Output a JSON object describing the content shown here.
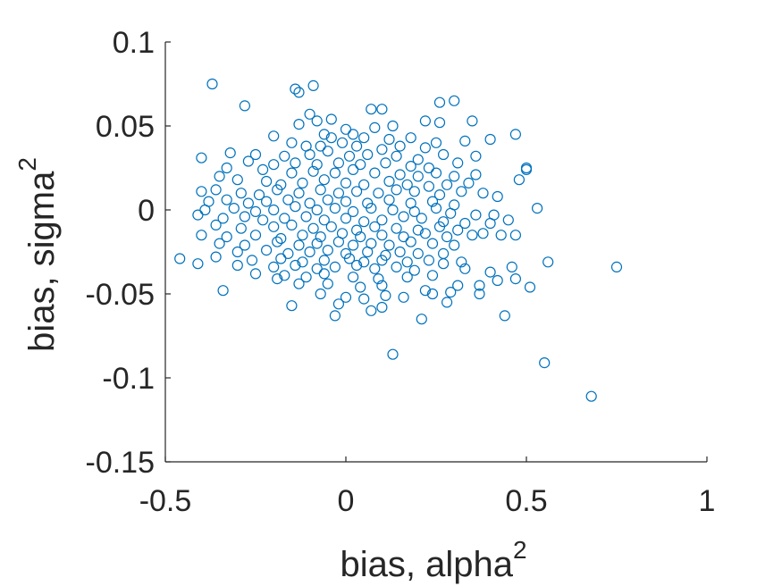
{
  "chart_data": {
    "type": "scatter",
    "xlabel": "bias, alpha",
    "xlabel_sup": "2",
    "ylabel": "bias, sigma",
    "ylabel_sup": "2",
    "xlim": [
      -0.5,
      1
    ],
    "ylim": [
      -0.15,
      0.1
    ],
    "xticks": [
      -0.5,
      0,
      0.5,
      1
    ],
    "xtick_labels": [
      "-0.5",
      "0",
      "0.5",
      "1"
    ],
    "yticks": [
      -0.15,
      -0.1,
      -0.05,
      0,
      0.05,
      0.1
    ],
    "ytick_labels": [
      "-0.15",
      "-0.1",
      "-0.05",
      "0",
      "0.05",
      "0.1"
    ],
    "marker": "open-circle",
    "color": "#0072BD",
    "grid": false,
    "series": [
      {
        "points": [
          [
            -0.37,
            0.075
          ],
          [
            -0.14,
            0.072
          ],
          [
            -0.13,
            0.07
          ],
          [
            -0.09,
            0.074
          ],
          [
            -0.28,
            0.062
          ],
          [
            0.07,
            0.06
          ],
          [
            0.1,
            0.06
          ],
          [
            0.26,
            0.064
          ],
          [
            0.3,
            0.065
          ],
          [
            -0.1,
            0.057
          ],
          [
            -0.08,
            0.053
          ],
          [
            -0.04,
            0.054
          ],
          [
            -0.13,
            0.051
          ],
          [
            0.08,
            0.049
          ],
          [
            0.13,
            0.05
          ],
          [
            0.22,
            0.053
          ],
          [
            0.26,
            0.052
          ],
          [
            0.35,
            0.053
          ],
          [
            0.0,
            0.048
          ],
          [
            0.02,
            0.045
          ],
          [
            -0.06,
            0.045
          ],
          [
            -0.04,
            0.043
          ],
          [
            0.05,
            0.043
          ],
          [
            -0.2,
            0.044
          ],
          [
            0.12,
            0.042
          ],
          [
            0.18,
            0.043
          ],
          [
            0.25,
            0.04
          ],
          [
            0.33,
            0.041
          ],
          [
            0.4,
            0.042
          ],
          [
            0.47,
            0.045
          ],
          [
            -0.15,
            0.04
          ],
          [
            -0.11,
            0.038
          ],
          [
            -0.07,
            0.038
          ],
          [
            -0.01,
            0.04
          ],
          [
            0.03,
            0.038
          ],
          [
            0.1,
            0.036
          ],
          [
            0.15,
            0.038
          ],
          [
            0.22,
            0.037
          ],
          [
            -0.32,
            0.034
          ],
          [
            -0.25,
            0.033
          ],
          [
            -0.17,
            0.032
          ],
          [
            -0.1,
            0.033
          ],
          [
            -0.05,
            0.035
          ],
          [
            0.01,
            0.032
          ],
          [
            0.06,
            0.033
          ],
          [
            0.14,
            0.032
          ],
          [
            0.2,
            0.03
          ],
          [
            0.27,
            0.033
          ],
          [
            0.36,
            0.032
          ],
          [
            0.31,
            0.028
          ],
          [
            0.23,
            0.025
          ],
          [
            0.18,
            0.026
          ],
          [
            0.11,
            0.028
          ],
          [
            0.04,
            0.027
          ],
          [
            -0.02,
            0.028
          ],
          [
            -0.08,
            0.027
          ],
          [
            -0.14,
            0.028
          ],
          [
            -0.2,
            0.027
          ],
          [
            -0.27,
            0.029
          ],
          [
            -0.4,
            0.031
          ],
          [
            -0.33,
            0.025
          ],
          [
            -0.23,
            0.024
          ],
          [
            -0.15,
            0.022
          ],
          [
            -0.09,
            0.023
          ],
          [
            -0.03,
            0.022
          ],
          [
            0.02,
            0.024
          ],
          [
            0.08,
            0.022
          ],
          [
            0.15,
            0.021
          ],
          [
            0.2,
            0.02
          ],
          [
            0.25,
            0.022
          ],
          [
            0.3,
            0.02
          ],
          [
            0.36,
            0.021
          ],
          [
            0.5,
            0.025
          ],
          [
            0.5,
            0.024
          ],
          [
            0.48,
            0.018
          ],
          [
            -0.35,
            0.02
          ],
          [
            -0.3,
            0.018
          ],
          [
            -0.22,
            0.017
          ],
          [
            -0.18,
            0.015
          ],
          [
            -0.12,
            0.016
          ],
          [
            -0.06,
            0.018
          ],
          [
            0.0,
            0.016
          ],
          [
            0.05,
            0.015
          ],
          [
            0.12,
            0.017
          ],
          [
            0.17,
            0.015
          ],
          [
            0.23,
            0.014
          ],
          [
            0.28,
            0.015
          ],
          [
            0.34,
            0.016
          ],
          [
            -0.4,
            0.011
          ],
          [
            -0.36,
            0.012
          ],
          [
            -0.29,
            0.01
          ],
          [
            -0.24,
            0.009
          ],
          [
            -0.19,
            0.012
          ],
          [
            -0.13,
            0.01
          ],
          [
            -0.07,
            0.012
          ],
          [
            -0.02,
            0.01
          ],
          [
            0.03,
            0.011
          ],
          [
            0.09,
            0.01
          ],
          [
            0.14,
            0.012
          ],
          [
            0.19,
            0.011
          ],
          [
            0.26,
            0.009
          ],
          [
            0.32,
            0.011
          ],
          [
            0.38,
            0.01
          ],
          [
            0.42,
            0.008
          ],
          [
            -0.38,
            0.005
          ],
          [
            -0.33,
            0.006
          ],
          [
            -0.27,
            0.004
          ],
          [
            -0.22,
            0.005
          ],
          [
            -0.16,
            0.006
          ],
          [
            -0.1,
            0.004
          ],
          [
            -0.05,
            0.006
          ],
          [
            0.0,
            0.005
          ],
          [
            0.06,
            0.004
          ],
          [
            0.12,
            0.006
          ],
          [
            0.18,
            0.004
          ],
          [
            0.24,
            0.005
          ],
          [
            0.3,
            0.003
          ],
          [
            -0.39,
            0.0
          ],
          [
            -0.31,
            0.001
          ],
          [
            -0.25,
            -0.001
          ],
          [
            -0.2,
            0.0
          ],
          [
            -0.14,
            0.002
          ],
          [
            -0.08,
            0.0
          ],
          [
            -0.03,
            0.001
          ],
          [
            0.02,
            -0.001
          ],
          [
            0.07,
            0.001
          ],
          [
            0.13,
            0.0
          ],
          [
            0.19,
            -0.001
          ],
          [
            0.25,
            0.001
          ],
          [
            0.29,
            -0.002
          ],
          [
            0.36,
            -0.003
          ],
          [
            0.41,
            -0.003
          ],
          [
            0.53,
            0.001
          ],
          [
            -0.41,
            -0.003
          ],
          [
            -0.34,
            -0.005
          ],
          [
            -0.28,
            -0.004
          ],
          [
            -0.23,
            -0.006
          ],
          [
            -0.17,
            -0.005
          ],
          [
            -0.11,
            -0.004
          ],
          [
            -0.06,
            -0.006
          ],
          [
            0.0,
            -0.005
          ],
          [
            0.05,
            -0.007
          ],
          [
            0.1,
            -0.006
          ],
          [
            0.16,
            -0.004
          ],
          [
            0.21,
            -0.005
          ],
          [
            0.27,
            -0.007
          ],
          [
            0.33,
            -0.008
          ],
          [
            0.4,
            -0.008
          ],
          [
            0.45,
            -0.006
          ],
          [
            -0.36,
            -0.009
          ],
          [
            -0.29,
            -0.011
          ],
          [
            -0.2,
            -0.01
          ],
          [
            -0.15,
            -0.009
          ],
          [
            -0.09,
            -0.011
          ],
          [
            -0.04,
            -0.01
          ],
          [
            0.03,
            -0.012
          ],
          [
            0.08,
            -0.01
          ],
          [
            0.14,
            -0.011
          ],
          [
            0.2,
            -0.012
          ],
          [
            0.26,
            -0.01
          ],
          [
            0.31,
            -0.012
          ],
          [
            -0.4,
            -0.015
          ],
          [
            -0.33,
            -0.016
          ],
          [
            -0.25,
            -0.015
          ],
          [
            -0.18,
            -0.017
          ],
          [
            -0.12,
            -0.015
          ],
          [
            -0.07,
            -0.016
          ],
          [
            -0.01,
            -0.014
          ],
          [
            0.04,
            -0.016
          ],
          [
            0.1,
            -0.015
          ],
          [
            0.16,
            -0.016
          ],
          [
            0.22,
            -0.014
          ],
          [
            0.28,
            -0.016
          ],
          [
            0.35,
            -0.015
          ],
          [
            0.38,
            -0.014
          ],
          [
            0.43,
            -0.015
          ],
          [
            0.47,
            -0.015
          ],
          [
            -0.35,
            -0.02
          ],
          [
            -0.28,
            -0.021
          ],
          [
            -0.19,
            -0.019
          ],
          [
            -0.13,
            -0.021
          ],
          [
            -0.08,
            -0.02
          ],
          [
            -0.02,
            -0.019
          ],
          [
            0.02,
            -0.021
          ],
          [
            0.07,
            -0.02
          ],
          [
            0.12,
            -0.021
          ],
          [
            0.18,
            -0.019
          ],
          [
            0.24,
            -0.02
          ],
          [
            0.3,
            -0.021
          ],
          [
            -0.3,
            -0.025
          ],
          [
            -0.22,
            -0.024
          ],
          [
            -0.16,
            -0.026
          ],
          [
            -0.1,
            -0.025
          ],
          [
            -0.05,
            -0.024
          ],
          [
            0.0,
            -0.026
          ],
          [
            0.06,
            -0.025
          ],
          [
            0.11,
            -0.027
          ],
          [
            0.15,
            -0.025
          ],
          [
            0.2,
            -0.026
          ],
          [
            0.27,
            -0.026
          ],
          [
            -0.46,
            -0.029
          ],
          [
            -0.36,
            -0.028
          ],
          [
            -0.26,
            -0.03
          ],
          [
            -0.18,
            -0.029
          ],
          [
            -0.12,
            -0.031
          ],
          [
            -0.06,
            -0.03
          ],
          [
            0.01,
            -0.029
          ],
          [
            0.05,
            -0.031
          ],
          [
            0.1,
            -0.03
          ],
          [
            0.17,
            -0.031
          ],
          [
            0.23,
            -0.03
          ],
          [
            0.32,
            -0.031
          ],
          [
            0.56,
            -0.031
          ],
          [
            -0.41,
            -0.032
          ],
          [
            -0.3,
            -0.033
          ],
          [
            -0.2,
            -0.034
          ],
          [
            -0.14,
            -0.033
          ],
          [
            -0.08,
            -0.035
          ],
          [
            -0.03,
            -0.034
          ],
          [
            0.03,
            -0.033
          ],
          [
            0.08,
            -0.035
          ],
          [
            0.14,
            -0.034
          ],
          [
            0.19,
            -0.036
          ],
          [
            0.27,
            -0.032
          ],
          [
            0.33,
            -0.035
          ],
          [
            0.4,
            -0.037
          ],
          [
            0.46,
            -0.034
          ],
          [
            0.75,
            -0.034
          ],
          [
            -0.25,
            -0.038
          ],
          [
            -0.17,
            -0.039
          ],
          [
            -0.11,
            -0.04
          ],
          [
            -0.06,
            -0.038
          ],
          [
            0.02,
            -0.04
          ],
          [
            0.09,
            -0.041
          ],
          [
            0.17,
            -0.04
          ],
          [
            0.24,
            -0.039
          ],
          [
            0.42,
            -0.042
          ],
          [
            0.47,
            -0.041
          ],
          [
            -0.34,
            -0.048
          ],
          [
            -0.19,
            -0.041
          ],
          [
            -0.13,
            -0.044
          ],
          [
            -0.05,
            -0.044
          ],
          [
            0.04,
            -0.046
          ],
          [
            0.1,
            -0.045
          ],
          [
            0.22,
            -0.048
          ],
          [
            0.29,
            -0.049
          ],
          [
            0.31,
            -0.045
          ],
          [
            0.37,
            -0.045
          ],
          [
            0.51,
            -0.046
          ],
          [
            -0.07,
            -0.05
          ],
          [
            0.0,
            -0.052
          ],
          [
            0.05,
            -0.053
          ],
          [
            0.11,
            -0.051
          ],
          [
            0.16,
            -0.052
          ],
          [
            0.24,
            -0.05
          ],
          [
            0.37,
            -0.05
          ],
          [
            -0.15,
            -0.057
          ],
          [
            -0.02,
            -0.056
          ],
          [
            0.07,
            -0.06
          ],
          [
            0.1,
            -0.058
          ],
          [
            0.28,
            -0.055
          ],
          [
            -0.03,
            -0.063
          ],
          [
            0.21,
            -0.065
          ],
          [
            0.44,
            -0.063
          ],
          [
            0.13,
            -0.086
          ],
          [
            0.55,
            -0.091
          ],
          [
            0.68,
            -0.111
          ]
        ]
      }
    ]
  }
}
